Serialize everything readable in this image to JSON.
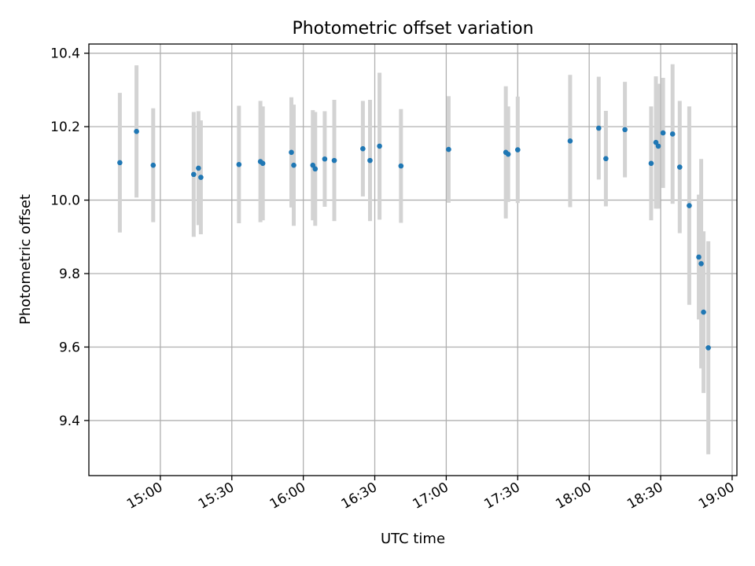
{
  "chart_data": {
    "type": "scatter",
    "title": "Photometric offset variation",
    "xlabel": "UTC time",
    "ylabel": "Photometric offset",
    "x_ticks": [
      "15:00",
      "15:30",
      "16:00",
      "16:30",
      "17:00",
      "17:30",
      "18:00",
      "18:30",
      "19:00"
    ],
    "y_ticks": [
      "9.4",
      "9.6",
      "9.8",
      "10.0",
      "10.2",
      "10.4"
    ],
    "xlim": [
      "14:30",
      "19:02"
    ],
    "ylim": [
      9.25,
      10.425
    ],
    "grid": true,
    "point_color": "#1f77b4",
    "errorbar_color": "#d3d3d3",
    "points": [
      {
        "t": "14:43",
        "y": 10.102,
        "err": 0.19
      },
      {
        "t": "14:50",
        "y": 10.187,
        "err": 0.18
      },
      {
        "t": "14:57",
        "y": 10.095,
        "err": 0.155
      },
      {
        "t": "15:14",
        "y": 10.07,
        "err": 0.17
      },
      {
        "t": "15:16",
        "y": 10.087,
        "err": 0.155
      },
      {
        "t": "15:17",
        "y": 10.062,
        "err": 0.155
      },
      {
        "t": "15:33",
        "y": 10.097,
        "err": 0.16
      },
      {
        "t": "15:42",
        "y": 10.105,
        "err": 0.165
      },
      {
        "t": "15:43",
        "y": 10.1,
        "err": 0.155
      },
      {
        "t": "15:55",
        "y": 10.13,
        "err": 0.15
      },
      {
        "t": "15:56",
        "y": 10.095,
        "err": 0.165
      },
      {
        "t": "16:04",
        "y": 10.095,
        "err": 0.15
      },
      {
        "t": "16:05",
        "y": 10.085,
        "err": 0.155
      },
      {
        "t": "16:09",
        "y": 10.112,
        "err": 0.13
      },
      {
        "t": "16:13",
        "y": 10.108,
        "err": 0.165
      },
      {
        "t": "16:25",
        "y": 10.14,
        "err": 0.13
      },
      {
        "t": "16:28",
        "y": 10.108,
        "err": 0.165
      },
      {
        "t": "16:32",
        "y": 10.147,
        "err": 0.2
      },
      {
        "t": "16:41",
        "y": 10.093,
        "err": 0.155
      },
      {
        "t": "17:01",
        "y": 10.138,
        "err": 0.145
      },
      {
        "t": "17:25",
        "y": 10.13,
        "err": 0.18
      },
      {
        "t": "17:26",
        "y": 10.125,
        "err": 0.13
      },
      {
        "t": "17:30",
        "y": 10.137,
        "err": 0.145
      },
      {
        "t": "17:52",
        "y": 10.161,
        "err": 0.18
      },
      {
        "t": "18:04",
        "y": 10.196,
        "err": 0.14
      },
      {
        "t": "18:07",
        "y": 10.113,
        "err": 0.13
      },
      {
        "t": "18:15",
        "y": 10.192,
        "err": 0.13
      },
      {
        "t": "18:26",
        "y": 10.1,
        "err": 0.155
      },
      {
        "t": "18:28",
        "y": 10.157,
        "err": 0.18
      },
      {
        "t": "18:29",
        "y": 10.147,
        "err": 0.17
      },
      {
        "t": "18:31",
        "y": 10.183,
        "err": 0.15
      },
      {
        "t": "18:35",
        "y": 10.18,
        "err": 0.19
      },
      {
        "t": "18:38",
        "y": 10.09,
        "err": 0.18
      },
      {
        "t": "18:42",
        "y": 9.985,
        "err": 0.27
      },
      {
        "t": "18:46",
        "y": 9.845,
        "err": 0.17
      },
      {
        "t": "18:47",
        "y": 9.827,
        "err": 0.285
      },
      {
        "t": "18:48",
        "y": 9.695,
        "err": 0.22
      },
      {
        "t": "18:50",
        "y": 9.598,
        "err": 0.29
      }
    ]
  }
}
